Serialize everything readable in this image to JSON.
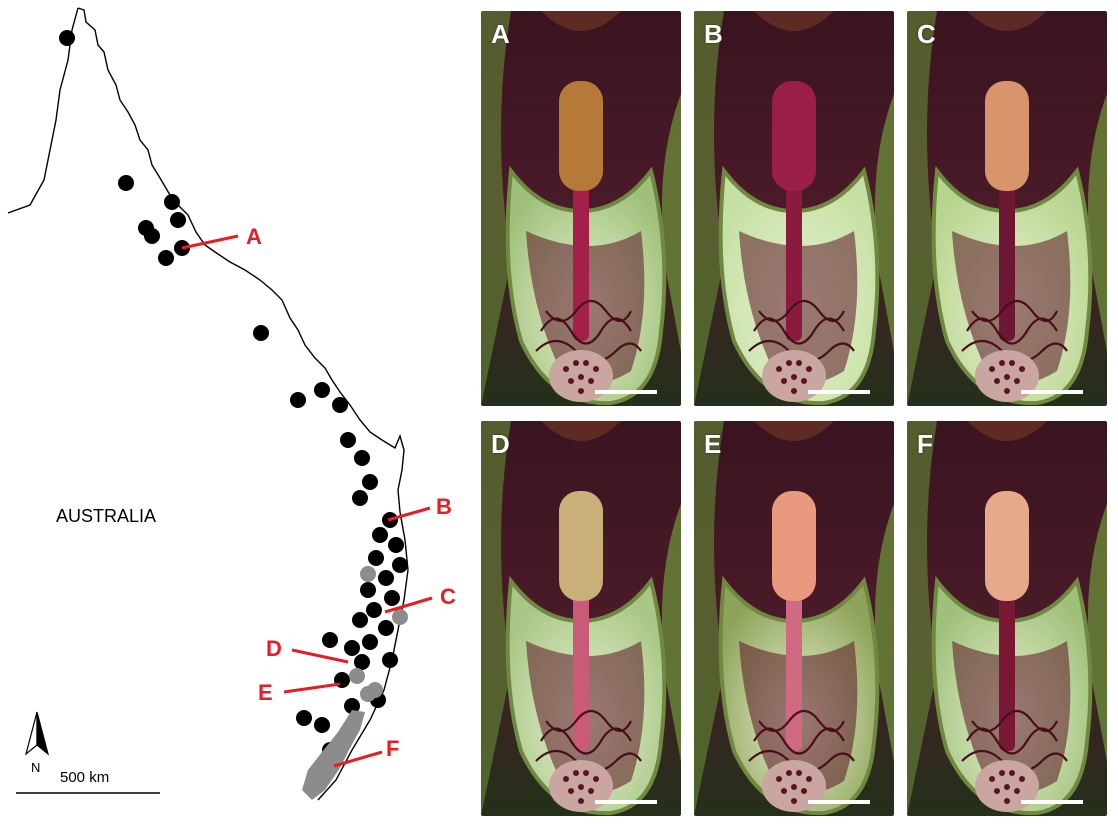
{
  "map": {
    "country_label": "AUSTRALIA",
    "north_label": "N",
    "scale_label": "500 km",
    "site_labels": [
      "A",
      "B",
      "C",
      "D",
      "E",
      "F"
    ],
    "colors": {
      "outline": "#000000",
      "record_black": "#000000",
      "record_grey": "#8c8c8c",
      "label_red": "#e31e24"
    }
  },
  "photos": [
    {
      "label": "A",
      "spadix_color": "#b57a3a",
      "stalk_color": "#a3204a",
      "spathe_color": "#9fc07a"
    },
    {
      "label": "B",
      "spadix_color": "#9b1d4a",
      "stalk_color": "#8a1a3e",
      "spathe_color": "#c6e0a4"
    },
    {
      "label": "C",
      "spadix_color": "#d8946a",
      "stalk_color": "#6c1733",
      "spathe_color": "#b8d58f"
    },
    {
      "label": "D",
      "spadix_color": "#c9b07a",
      "stalk_color": "#c95a78",
      "spathe_color": "#a8c685"
    },
    {
      "label": "E",
      "spadix_color": "#e8997e",
      "stalk_color": "#d06a82",
      "spathe_color": "#8ea35a"
    },
    {
      "label": "F",
      "spadix_color": "#e6a98a",
      "stalk_color": "#7a1735",
      "spathe_color": "#9fc07a"
    }
  ]
}
